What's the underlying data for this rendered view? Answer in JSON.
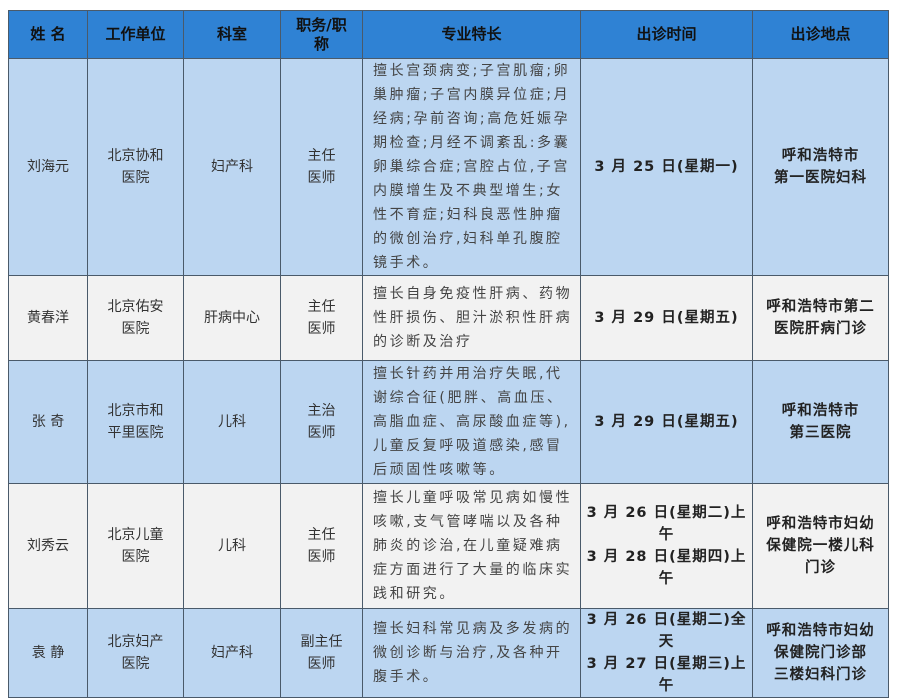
{
  "headers": [
    "姓  名",
    "工作单位",
    "科室",
    "职务/职\n称",
    "专业特长",
    "出诊时间",
    "出诊地点"
  ],
  "rows": [
    {
      "name": "刘海元",
      "unit": "北京协和\n医院",
      "dept": "妇产科",
      "title": "主任\n医师",
      "specialty": "擅长宫颈病变;子宫肌瘤;卵巢肿瘤;子宫内膜异位症;月经病;孕前咨询;高危妊娠孕期检查;月经不调紊乱:多囊卵巢综合症;宫腔占位,子宫内膜增生及不典型增生;女性不育症;妇科良恶性肿瘤的微创治疗,妇科单孔腹腔镜手术。",
      "time": "3 月 25 日(星期一)",
      "location": "呼和浩特市\n第一医院妇科"
    },
    {
      "name": "黄春洋",
      "unit": "北京佑安\n医院",
      "dept": "肝病中心",
      "title": "主任\n医师",
      "specialty": "擅长自身免疫性肝病、药物性肝损伤、胆汁淤积性肝病的诊断及治疗",
      "time": "3 月 29 日(星期五)",
      "location": "呼和浩特市第二\n医院肝病门诊"
    },
    {
      "name": "张  奇",
      "unit": "北京市和\n平里医院",
      "dept": "儿科",
      "title": "主治\n医师",
      "specialty": "擅长针药并用治疗失眠,代谢综合征(肥胖、高血压、高脂血症、高尿酸血症等),儿童反复呼吸道感染,感冒后顽固性咳嗽等。",
      "time": "3 月 29 日(星期五)",
      "location": "呼和浩特市\n第三医院"
    },
    {
      "name": "刘秀云",
      "unit": "北京儿童\n医院",
      "dept": "儿科",
      "title": "主任\n医师",
      "specialty": "擅长儿童呼吸常见病如慢性咳嗽,支气管哮喘以及各种肺炎的诊治,在儿童疑难病症方面进行了大量的临床实践和研究。",
      "time": "3 月 26 日(星期二)上午\n3 月 28 日(星期四)上午",
      "location": "呼和浩特市妇幼\n保健院一楼儿科\n门诊"
    },
    {
      "name": "袁  静",
      "unit": "北京妇产\n医院",
      "dept": "妇产科",
      "title": "副主任\n医师",
      "specialty": "擅长妇科常见病及多发病的微创诊断与治疗,及各种开腹手术。",
      "time": "3 月 26 日(星期二)全天\n3 月 27 日(星期三)上午",
      "location": "呼和浩特市妇幼\n保健院门诊部\n三楼妇科门诊"
    }
  ],
  "colors": {
    "header": "#2f82d4",
    "row_blue": "#bcd6f1",
    "row_white": "#f2f2f2"
  }
}
